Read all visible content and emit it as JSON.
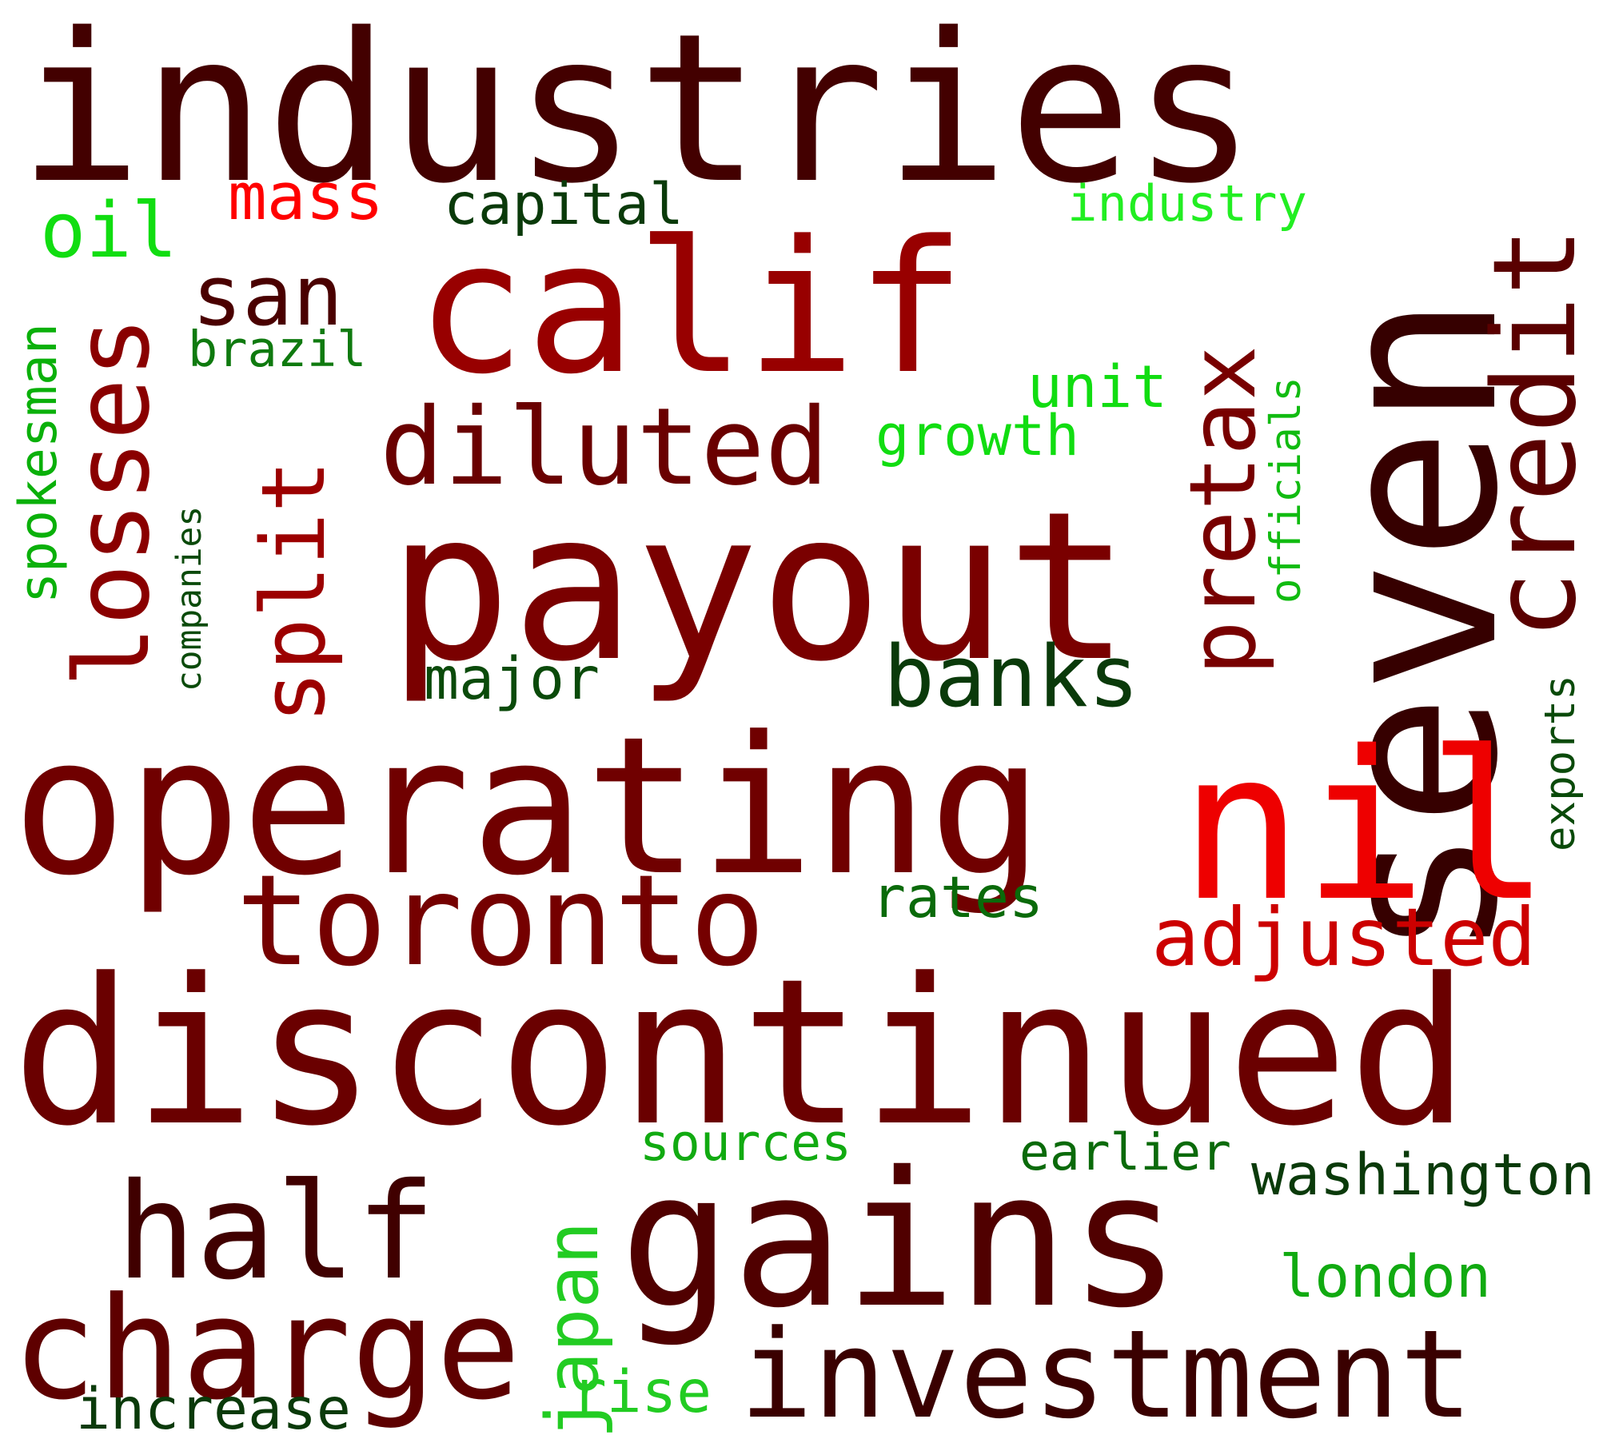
{
  "words": [
    {
      "text": "industries",
      "color": "#430000"
    },
    {
      "text": "seven",
      "color": "#360000"
    },
    {
      "text": "credit",
      "color": "#5a0000"
    },
    {
      "text": "calif",
      "color": "#980000"
    },
    {
      "text": "mass",
      "color": "#ff0000"
    },
    {
      "text": "capital",
      "color": "#0a3a0a"
    },
    {
      "text": "industry",
      "color": "#22ee22"
    },
    {
      "text": "oil",
      "color": "#11dd11"
    },
    {
      "text": "san",
      "color": "#4a0000"
    },
    {
      "text": "losses",
      "color": "#8a0000"
    },
    {
      "text": "split",
      "color": "#9c0000"
    },
    {
      "text": "spokesman",
      "color": "#0ab00a"
    },
    {
      "text": "companies",
      "color": "#0a4a0a"
    },
    {
      "text": "brazil",
      "color": "#0f7a0f"
    },
    {
      "text": "pretax",
      "color": "#780000"
    },
    {
      "text": "officials",
      "color": "#11bb11"
    },
    {
      "text": "unit",
      "color": "#11dd11"
    },
    {
      "text": "growth",
      "color": "#11dd11"
    },
    {
      "text": "diluted",
      "color": "#6a0000"
    },
    {
      "text": "payout",
      "color": "#7a0000"
    },
    {
      "text": "banks",
      "color": "#0a3a0a"
    },
    {
      "text": "major",
      "color": "#0a4a0a"
    },
    {
      "text": "operating",
      "color": "#700000"
    },
    {
      "text": "nil",
      "color": "#ee0000"
    },
    {
      "text": "exports",
      "color": "#0a4a0a"
    },
    {
      "text": "toronto",
      "color": "#750000"
    },
    {
      "text": "rates",
      "color": "#0a6a0a"
    },
    {
      "text": "adjusted",
      "color": "#cc0000"
    },
    {
      "text": "discontinued",
      "color": "#6a0000"
    },
    {
      "text": "sources",
      "color": "#11aa11"
    },
    {
      "text": "earlier",
      "color": "#0a6a0a"
    },
    {
      "text": "washington",
      "color": "#0a3a0a"
    },
    {
      "text": "half",
      "color": "#400000"
    },
    {
      "text": "gains",
      "color": "#500000"
    },
    {
      "text": "japan",
      "color": "#22cc22"
    },
    {
      "text": "london",
      "color": "#11aa11"
    },
    {
      "text": "charge",
      "color": "#5e0000"
    },
    {
      "text": "investment",
      "color": "#3a0000"
    },
    {
      "text": "rise",
      "color": "#22cc22"
    },
    {
      "text": "increase",
      "color": "#0a3a0a"
    }
  ]
}
